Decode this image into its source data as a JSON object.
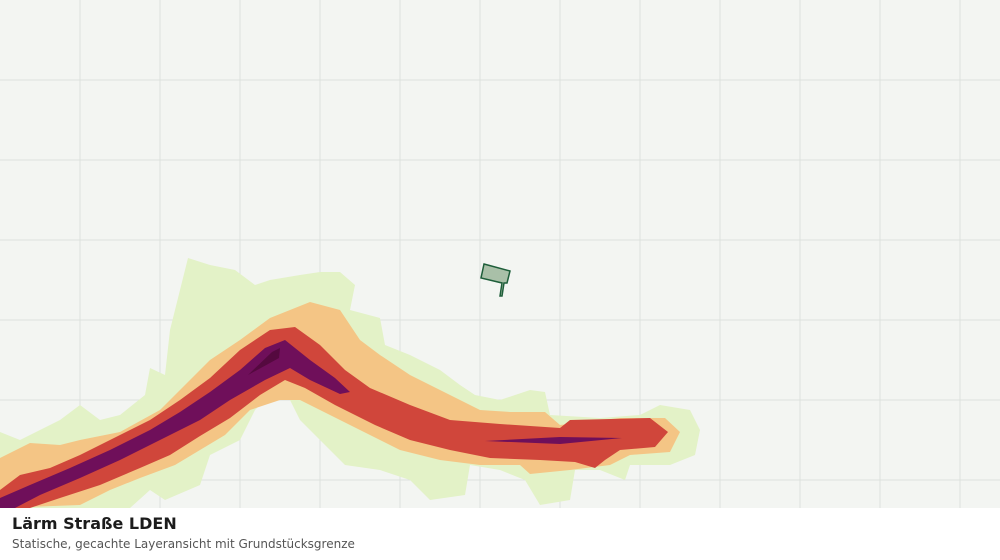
{
  "map": {
    "title": "Lärm Straße LDEN",
    "subtitle": "Statische, gecachte Layeransicht mit Grundstücksgrenze"
  }
}
